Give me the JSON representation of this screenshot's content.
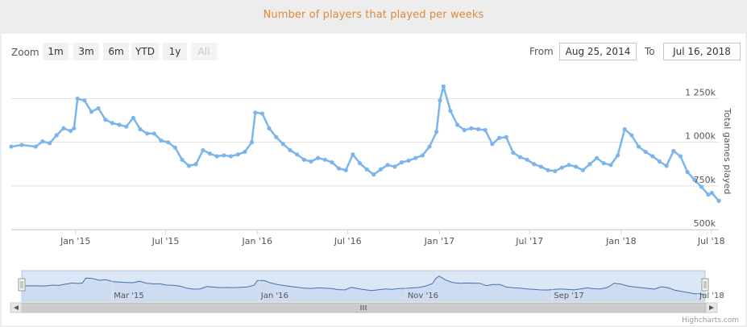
{
  "header": {
    "title": "Number of players that played per weeks"
  },
  "toolbar": {
    "zoom_label": "Zoom",
    "buttons": [
      "1m",
      "3m",
      "6m",
      "YTD",
      "1y",
      "All"
    ],
    "from_label": "From",
    "from_value": "Aug 25, 2014",
    "to_label": "To",
    "to_value": "Jul 16, 2018"
  },
  "credit": "Highcharts.com",
  "colors": {
    "line": "#7cb5ec",
    "title": "#e0893a",
    "navigator_fill": "#dbe7f7",
    "navigator_line": "#4572a7"
  },
  "chart_data": {
    "type": "line",
    "title": "Number of players that played per weeks",
    "ylabel": "Total games played",
    "ylim": [
      500000,
      1400000
    ],
    "yticks": [
      500000,
      750000,
      1000000,
      1250000
    ],
    "ytick_labels": [
      "500k",
      "750k",
      "1 000k",
      "1 250k"
    ],
    "xlim": [
      "2014-08-25",
      "2018-07-16"
    ],
    "xtick_labels": [
      "Jan '15",
      "Jul '15",
      "Jan '16",
      "Jul '16",
      "Jan '17",
      "Jul '17",
      "Jan '18",
      "Jul '18"
    ],
    "xtick_dates": [
      "2015-01-01",
      "2015-07-01",
      "2016-01-01",
      "2016-07-01",
      "2017-01-01",
      "2017-07-01",
      "2018-01-01",
      "2018-07-01"
    ],
    "navigator_labels": [
      "Mar '15",
      "Jan '16",
      "Nov '16",
      "Sep '17",
      "Jul '18"
    ],
    "navigator_dates": [
      "2015-03-01",
      "2016-01-01",
      "2016-11-01",
      "2017-09-01",
      "2018-07-01"
    ],
    "grid": true,
    "legend": "none",
    "series": [
      {
        "points": [
          [
            "2014-08-25",
            975000
          ],
          [
            "2014-09-15",
            985000
          ],
          [
            "2014-10-13",
            975000
          ],
          [
            "2014-10-27",
            1005000
          ],
          [
            "2014-11-10",
            995000
          ],
          [
            "2014-11-24",
            1040000
          ],
          [
            "2014-12-08",
            1080000
          ],
          [
            "2014-12-22",
            1065000
          ],
          [
            "2014-12-29",
            1080000
          ],
          [
            "2015-01-05",
            1250000
          ],
          [
            "2015-01-19",
            1240000
          ],
          [
            "2015-02-02",
            1175000
          ],
          [
            "2015-02-16",
            1195000
          ],
          [
            "2015-03-02",
            1130000
          ],
          [
            "2015-03-16",
            1110000
          ],
          [
            "2015-03-30",
            1100000
          ],
          [
            "2015-04-13",
            1090000
          ],
          [
            "2015-04-27",
            1140000
          ],
          [
            "2015-05-11",
            1075000
          ],
          [
            "2015-05-25",
            1050000
          ],
          [
            "2015-06-08",
            1050000
          ],
          [
            "2015-06-22",
            1010000
          ],
          [
            "2015-07-06",
            1000000
          ],
          [
            "2015-07-20",
            970000
          ],
          [
            "2015-08-03",
            900000
          ],
          [
            "2015-08-17",
            865000
          ],
          [
            "2015-08-31",
            875000
          ],
          [
            "2015-09-14",
            955000
          ],
          [
            "2015-09-28",
            935000
          ],
          [
            "2015-10-12",
            920000
          ],
          [
            "2015-10-26",
            925000
          ],
          [
            "2015-11-09",
            920000
          ],
          [
            "2015-11-23",
            930000
          ],
          [
            "2015-12-07",
            945000
          ],
          [
            "2015-12-21",
            1000000
          ],
          [
            "2015-12-28",
            1170000
          ],
          [
            "2016-01-11",
            1165000
          ],
          [
            "2016-01-25",
            1080000
          ],
          [
            "2016-02-08",
            1030000
          ],
          [
            "2016-02-22",
            990000
          ],
          [
            "2016-03-07",
            955000
          ],
          [
            "2016-03-21",
            930000
          ],
          [
            "2016-04-04",
            900000
          ],
          [
            "2016-04-18",
            890000
          ],
          [
            "2016-05-02",
            910000
          ],
          [
            "2016-05-16",
            900000
          ],
          [
            "2016-05-30",
            885000
          ],
          [
            "2016-06-13",
            850000
          ],
          [
            "2016-06-27",
            840000
          ],
          [
            "2016-07-11",
            930000
          ],
          [
            "2016-07-25",
            880000
          ],
          [
            "2016-08-08",
            845000
          ],
          [
            "2016-08-22",
            815000
          ],
          [
            "2016-09-05",
            845000
          ],
          [
            "2016-09-19",
            870000
          ],
          [
            "2016-10-03",
            860000
          ],
          [
            "2016-10-17",
            885000
          ],
          [
            "2016-10-31",
            895000
          ],
          [
            "2016-11-14",
            910000
          ],
          [
            "2016-11-28",
            925000
          ],
          [
            "2016-12-12",
            975000
          ],
          [
            "2016-12-26",
            1060000
          ],
          [
            "2017-01-02",
            1240000
          ],
          [
            "2017-01-09",
            1320000
          ],
          [
            "2017-01-23",
            1180000
          ],
          [
            "2017-02-06",
            1100000
          ],
          [
            "2017-02-20",
            1070000
          ],
          [
            "2017-03-06",
            1080000
          ],
          [
            "2017-03-20",
            1075000
          ],
          [
            "2017-04-03",
            1070000
          ],
          [
            "2017-04-17",
            990000
          ],
          [
            "2017-05-01",
            1025000
          ],
          [
            "2017-05-15",
            1030000
          ],
          [
            "2017-05-29",
            940000
          ],
          [
            "2017-06-12",
            915000
          ],
          [
            "2017-06-26",
            900000
          ],
          [
            "2017-07-10",
            875000
          ],
          [
            "2017-07-24",
            860000
          ],
          [
            "2017-08-07",
            840000
          ],
          [
            "2017-08-21",
            835000
          ],
          [
            "2017-09-04",
            855000
          ],
          [
            "2017-09-18",
            870000
          ],
          [
            "2017-10-02",
            860000
          ],
          [
            "2017-10-16",
            840000
          ],
          [
            "2017-10-30",
            875000
          ],
          [
            "2017-11-13",
            910000
          ],
          [
            "2017-11-27",
            880000
          ],
          [
            "2017-12-11",
            870000
          ],
          [
            "2017-12-25",
            925000
          ],
          [
            "2018-01-08",
            1075000
          ],
          [
            "2018-01-22",
            1040000
          ],
          [
            "2018-02-05",
            975000
          ],
          [
            "2018-02-19",
            945000
          ],
          [
            "2018-03-05",
            920000
          ],
          [
            "2018-03-19",
            890000
          ],
          [
            "2018-04-02",
            865000
          ],
          [
            "2018-04-16",
            950000
          ],
          [
            "2018-04-30",
            920000
          ],
          [
            "2018-05-14",
            830000
          ],
          [
            "2018-05-28",
            785000
          ],
          [
            "2018-06-11",
            745000
          ],
          [
            "2018-06-25",
            700000
          ],
          [
            "2018-07-02",
            710000
          ],
          [
            "2018-07-16",
            665000
          ]
        ]
      }
    ]
  }
}
